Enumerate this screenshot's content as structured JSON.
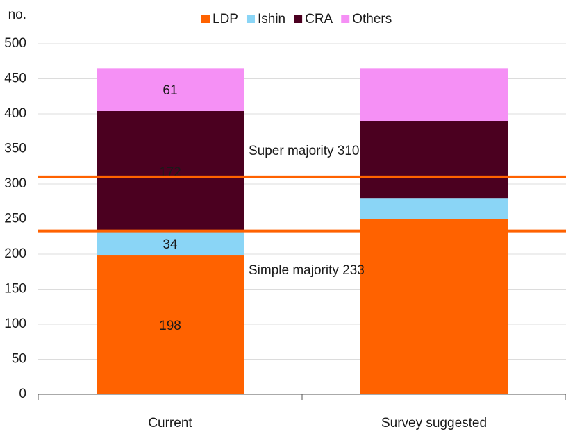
{
  "chart_data": {
    "type": "stacked_bar",
    "y_label": "no.",
    "categories": [
      "Current",
      "Survey suggested"
    ],
    "series": [
      {
        "name": "LDP",
        "color": "#ff6200",
        "values": [
          198,
          250
        ],
        "value_labels": [
          "198",
          null
        ]
      },
      {
        "name": "Ishin",
        "color": "#8ad5f6",
        "values": [
          34,
          30
        ],
        "value_labels": [
          "34",
          null
        ]
      },
      {
        "name": "CRA",
        "color": "#4b0020",
        "values": [
          172,
          110
        ],
        "value_labels": [
          "172",
          null
        ]
      },
      {
        "name": "Others",
        "color": "#f590f5",
        "values": [
          61,
          75
        ],
        "value_labels": [
          "61",
          null
        ]
      }
    ],
    "reference_lines": [
      {
        "value": 310,
        "label": "Super majority 310",
        "color": "#ff6200"
      },
      {
        "value": 233,
        "label": "Simple majority 233",
        "color": "#ff6200"
      }
    ],
    "ylim": [
      0,
      500
    ],
    "yticks": [
      0,
      50,
      100,
      150,
      200,
      250,
      300,
      350,
      400,
      450,
      500
    ],
    "grid": true
  }
}
